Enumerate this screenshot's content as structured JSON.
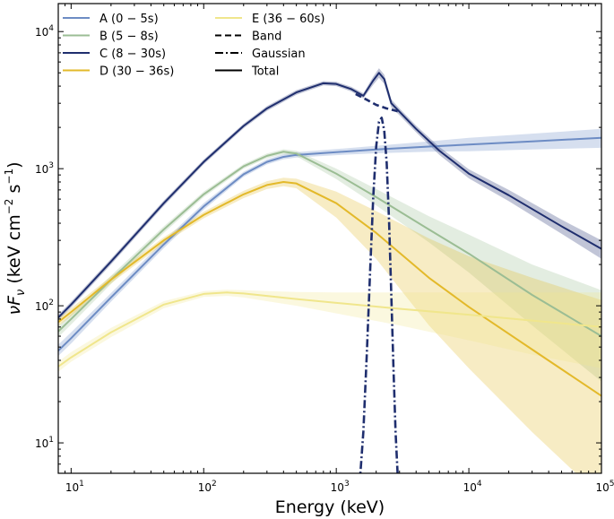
{
  "chart_data": {
    "type": "line",
    "xscale": "log",
    "yscale": "log",
    "xlim": [
      8,
      100000
    ],
    "ylim": [
      6,
      16000
    ],
    "xlabel": "Energy (keV)",
    "ylabel": {
      "main": "νF",
      "sub": "ν",
      "unit_a": " (keV cm",
      "exp1": "−2",
      "unit_b": " s",
      "exp2": "−1",
      "close": ")"
    },
    "x_ticks": [
      {
        "value": 10,
        "base": "10",
        "exp": "1"
      },
      {
        "value": 100,
        "base": "10",
        "exp": "2"
      },
      {
        "value": 1000,
        "base": "10",
        "exp": "3"
      },
      {
        "value": 10000,
        "base": "10",
        "exp": "4"
      },
      {
        "value": 100000,
        "base": "10",
        "exp": "5"
      }
    ],
    "y_ticks": [
      {
        "value": 10,
        "base": "10",
        "exp": "1"
      },
      {
        "value": 100,
        "base": "10",
        "exp": "2"
      },
      {
        "value": 1000,
        "base": "10",
        "exp": "3"
      },
      {
        "value": 10000,
        "base": "10",
        "exp": "4"
      }
    ],
    "series": [
      {
        "name": "A (0 − 5s)",
        "color": "#6d8cc4",
        "style": "solid",
        "x": [
          8,
          10,
          20,
          50,
          100,
          200,
          300,
          400,
          500,
          1000,
          2000,
          5000,
          10000,
          30000,
          100000
        ],
        "y": [
          47,
          58,
          115,
          280,
          530,
          910,
          1120,
          1220,
          1260,
          1320,
          1380,
          1450,
          1500,
          1580,
          1680
        ],
        "band_upper": [
          52,
          64,
          124,
          298,
          560,
          950,
          1170,
          1275,
          1320,
          1390,
          1470,
          1580,
          1680,
          1800,
          1950
        ],
        "band_lower": [
          43,
          53,
          107,
          263,
          502,
          872,
          1075,
          1170,
          1205,
          1255,
          1295,
          1330,
          1340,
          1380,
          1420
        ]
      },
      {
        "name": "B (5 − 8s)",
        "color": "#9bbd94",
        "style": "solid",
        "x": [
          8,
          10,
          20,
          50,
          100,
          200,
          300,
          400,
          500,
          1000,
          2000,
          5000,
          10000,
          30000,
          100000
        ],
        "y": [
          65,
          80,
          155,
          360,
          650,
          1040,
          1240,
          1330,
          1290,
          920,
          620,
          360,
          240,
          120,
          60
        ],
        "band_upper": [
          71,
          87,
          166,
          380,
          680,
          1080,
          1290,
          1385,
          1350,
          1000,
          710,
          450,
          330,
          200,
          130
        ],
        "band_lower": [
          59,
          73,
          144,
          340,
          620,
          1000,
          1190,
          1275,
          1230,
          840,
          540,
          290,
          175,
          72,
          28
        ]
      },
      {
        "name": "C (8 − 30s)",
        "color": "#1f2e6e",
        "style": "solid",
        "x": [
          8,
          10,
          20,
          50,
          100,
          200,
          300,
          500,
          800,
          1000,
          1300,
          1600,
          1900,
          2100,
          2300,
          2600,
          3000,
          4000,
          6000,
          10000,
          20000,
          50000,
          100000
        ],
        "y": [
          82,
          102,
          210,
          560,
          1120,
          2050,
          2750,
          3600,
          4200,
          4150,
          3800,
          3400,
          4400,
          5000,
          4500,
          3000,
          2600,
          1950,
          1350,
          920,
          640,
          380,
          260
        ],
        "band_upper": [
          86,
          107,
          220,
          585,
          1165,
          2130,
          2860,
          3740,
          4350,
          4300,
          3950,
          3550,
          4700,
          5400,
          4850,
          3200,
          2750,
          2060,
          1440,
          990,
          700,
          425,
          300
        ],
        "band_lower": [
          78,
          97,
          200,
          535,
          1075,
          1970,
          2640,
          3460,
          4050,
          4000,
          3650,
          3250,
          4100,
          4600,
          4150,
          2800,
          2450,
          1840,
          1260,
          850,
          580,
          335,
          220
        ]
      },
      {
        "name": "D (30 − 36s)",
        "color": "#e3b92a",
        "style": "solid",
        "x": [
          8,
          10,
          20,
          50,
          100,
          200,
          300,
          400,
          500,
          1000,
          2000,
          5000,
          10000,
          30000,
          100000
        ],
        "y": [
          76,
          90,
          155,
          300,
          460,
          650,
          760,
          800,
          780,
          560,
          340,
          160,
          98,
          48,
          22
        ],
        "band_upper": [
          81,
          96,
          164,
          316,
          485,
          690,
          810,
          860,
          845,
          680,
          490,
          310,
          230,
          160,
          110
        ],
        "band_lower": [
          71,
          84,
          146,
          284,
          435,
          610,
          710,
          745,
          720,
          440,
          220,
          72,
          35,
          12,
          4
        ]
      },
      {
        "name": "E (36 − 60s)",
        "color": "#f0e68c",
        "style": "solid",
        "x": [
          8,
          10,
          20,
          50,
          100,
          150,
          200,
          300,
          500,
          1000,
          3000,
          10000,
          30000,
          100000
        ],
        "y": [
          36,
          42,
          64,
          102,
          122,
          125,
          123,
          118,
          112,
          105,
          95,
          86,
          78,
          70
        ],
        "band_upper": [
          39,
          46,
          69,
          108,
          128,
          131,
          130,
          128,
          126,
          125,
          125,
          125,
          125,
          125
        ],
        "band_lower": [
          33,
          39,
          59,
          96,
          116,
          118,
          115,
          108,
          100,
          88,
          72,
          56,
          44,
          35
        ]
      },
      {
        "name": "Band",
        "color": "#1f2e6e",
        "style": "dashed",
        "x": [
          1400,
          1700,
          2000,
          2400,
          3000
        ],
        "y": [
          3500,
          3180,
          2920,
          2750,
          2600
        ]
      },
      {
        "name": "Gaussian",
        "color": "#1f2e6e",
        "style": "dashdot",
        "x": [
          1500,
          1600,
          1700,
          1800,
          1900,
          2000,
          2100,
          2200,
          2300,
          2400,
          2500,
          2600,
          2700,
          2800,
          2900,
          3000
        ],
        "y": [
          5,
          12,
          45,
          180,
          620,
          1450,
          2200,
          2350,
          1900,
          1100,
          420,
          120,
          35,
          12,
          6,
          5
        ]
      }
    ],
    "legend": {
      "placement": "top-left",
      "entries": [
        {
          "label": "A (0 − 5s)",
          "color": "#6d8cc4",
          "style": "solid"
        },
        {
          "label": "B (5 − 8s)",
          "color": "#9bbd94",
          "style": "solid"
        },
        {
          "label": "C (8 − 30s)",
          "color": "#1f2e6e",
          "style": "solid"
        },
        {
          "label": "D (30 − 36s)",
          "color": "#e3b92a",
          "style": "solid"
        },
        {
          "label": "E (36 − 60s)",
          "color": "#f0e68c",
          "style": "solid"
        },
        {
          "label": "Band",
          "color": "#000000",
          "style": "dashed"
        },
        {
          "label": "Gaussian",
          "color": "#000000",
          "style": "dashdot"
        },
        {
          "label": "Total",
          "color": "#000000",
          "style": "solid"
        }
      ]
    }
  }
}
